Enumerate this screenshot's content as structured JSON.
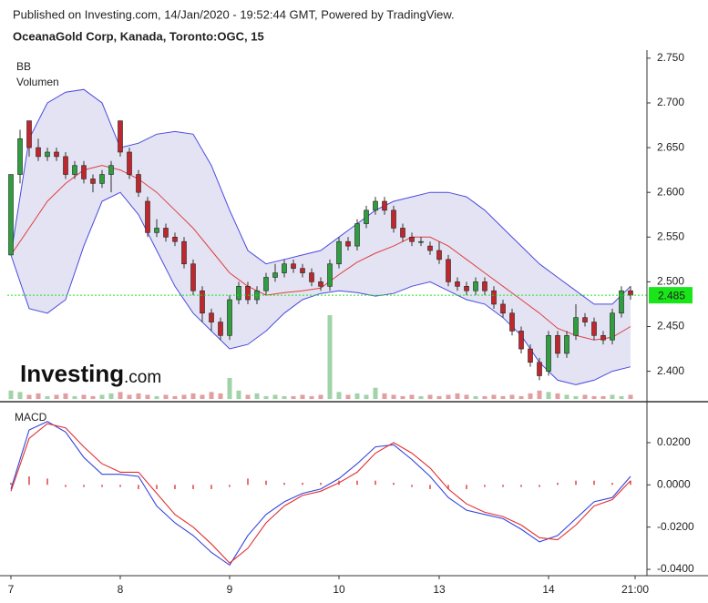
{
  "header": {
    "published": "Published on Investing.com, 14/Jan/2020 - 19:52:44 GMT, Powered by TradingView.",
    "symbol": "OceanaGold Corp, Kanada, Toronto:OGC, 15"
  },
  "logo": {
    "brand": "Investing",
    "suffix": ".com"
  },
  "chart_data": [
    {
      "type": "candlestick",
      "indicator_label": "BB",
      "volume_label": "Volumen",
      "xlim": [
        -0.4,
        69.8
      ],
      "ylim": [
        2.367,
        2.757
      ],
      "yticks": [
        {
          "value": 2.75,
          "label": "2.750"
        },
        {
          "value": 2.7,
          "label": "2.700"
        },
        {
          "value": 2.65,
          "label": "2.650"
        },
        {
          "value": 2.6,
          "label": "2.600"
        },
        {
          "value": 2.55,
          "label": "2.550"
        },
        {
          "value": 2.5,
          "label": "2.500"
        },
        {
          "value": 2.45,
          "label": "2.450"
        },
        {
          "value": 2.4,
          "label": "2.400"
        }
      ],
      "last_price": 2.485,
      "last_price_color": "#19e619",
      "up_color": "#2e9e3e",
      "down_color": "#c0272d",
      "open": [
        2.53,
        2.62,
        2.68,
        2.65,
        2.64,
        2.645,
        2.64,
        2.62,
        2.63,
        2.615,
        2.61,
        2.62,
        2.68,
        2.645,
        2.62,
        2.59,
        2.555,
        2.56,
        2.55,
        2.545,
        2.52,
        2.49,
        2.465,
        2.455,
        2.44,
        2.48,
        2.495,
        2.48,
        2.49,
        2.505,
        2.51,
        2.52,
        2.515,
        2.51,
        2.5,
        2.495,
        2.52,
        2.545,
        2.54,
        2.565,
        2.58,
        2.59,
        2.58,
        2.56,
        2.55,
        2.545,
        2.54,
        2.535,
        2.525,
        2.5,
        2.495,
        2.49,
        2.5,
        2.49,
        2.475,
        2.465,
        2.445,
        2.425,
        2.41,
        2.4,
        2.44,
        2.42,
        2.44,
        2.46,
        2.455,
        2.44,
        2.435,
        2.465,
        2.49
      ],
      "high": [
        2.62,
        2.67,
        2.68,
        2.66,
        2.65,
        2.65,
        2.645,
        2.635,
        2.635,
        2.62,
        2.625,
        2.635,
        2.68,
        2.65,
        2.625,
        2.595,
        2.57,
        2.565,
        2.555,
        2.55,
        2.525,
        2.495,
        2.47,
        2.46,
        2.485,
        2.5,
        2.5,
        2.495,
        2.51,
        2.52,
        2.525,
        2.525,
        2.52,
        2.515,
        2.505,
        2.525,
        2.55,
        2.55,
        2.57,
        2.585,
        2.595,
        2.595,
        2.585,
        2.565,
        2.555,
        2.55,
        2.545,
        2.545,
        2.53,
        2.505,
        2.5,
        2.505,
        2.505,
        2.495,
        2.48,
        2.47,
        2.45,
        2.43,
        2.415,
        2.445,
        2.445,
        2.445,
        2.475,
        2.465,
        2.46,
        2.445,
        2.47,
        2.495,
        2.495
      ],
      "low": [
        2.53,
        2.61,
        2.64,
        2.635,
        2.635,
        2.635,
        2.615,
        2.615,
        2.61,
        2.6,
        2.605,
        2.6,
        2.64,
        2.615,
        2.595,
        2.55,
        2.55,
        2.545,
        2.54,
        2.515,
        2.485,
        2.455,
        2.445,
        2.435,
        2.435,
        2.475,
        2.475,
        2.475,
        2.485,
        2.5,
        2.505,
        2.51,
        2.505,
        2.495,
        2.49,
        2.49,
        2.515,
        2.535,
        2.535,
        2.56,
        2.575,
        2.575,
        2.555,
        2.545,
        2.54,
        2.54,
        2.53,
        2.52,
        2.495,
        2.49,
        2.485,
        2.485,
        2.485,
        2.47,
        2.46,
        2.44,
        2.42,
        2.405,
        2.39,
        2.395,
        2.415,
        2.415,
        2.435,
        2.45,
        2.435,
        2.43,
        2.43,
        2.46,
        2.48
      ],
      "close": [
        2.62,
        2.66,
        2.65,
        2.64,
        2.645,
        2.64,
        2.62,
        2.63,
        2.615,
        2.61,
        2.62,
        2.63,
        2.645,
        2.62,
        2.6,
        2.555,
        2.56,
        2.55,
        2.545,
        2.52,
        2.49,
        2.465,
        2.455,
        2.44,
        2.48,
        2.495,
        2.48,
        2.49,
        2.505,
        2.51,
        2.52,
        2.515,
        2.51,
        2.5,
        2.495,
        2.52,
        2.545,
        2.54,
        2.565,
        2.58,
        2.59,
        2.58,
        2.56,
        2.55,
        2.545,
        2.545,
        2.535,
        2.525,
        2.5,
        2.495,
        2.49,
        2.5,
        2.49,
        2.475,
        2.465,
        2.445,
        2.425,
        2.41,
        2.395,
        2.44,
        2.42,
        2.44,
        2.46,
        2.455,
        2.44,
        2.435,
        2.465,
        2.49,
        2.485
      ],
      "volume": [
        6,
        5,
        3,
        4,
        2,
        3,
        4,
        2,
        3,
        2,
        3,
        4,
        5,
        3,
        4,
        3,
        2,
        3,
        2,
        3,
        4,
        3,
        5,
        4,
        15,
        6,
        3,
        4,
        2,
        3,
        2,
        2,
        3,
        2,
        3,
        60,
        5,
        3,
        4,
        3,
        8,
        4,
        3,
        2,
        3,
        2,
        3,
        2,
        3,
        4,
        3,
        2,
        2,
        3,
        2,
        3,
        2,
        4,
        6,
        5,
        4,
        3,
        2,
        3,
        2,
        2,
        3,
        2,
        3
      ],
      "bollinger": {
        "band_color": "#4a4ae0",
        "middle_color": "#e04040",
        "x": [
          0,
          2,
          4,
          6,
          8,
          10,
          12,
          14,
          16,
          18,
          20,
          22,
          24,
          26,
          28,
          30,
          32,
          34,
          36,
          38,
          40,
          42,
          44,
          46,
          48,
          50,
          52,
          54,
          56,
          58,
          60,
          62,
          64,
          66,
          68
        ],
        "upper": [
          2.53,
          2.66,
          2.7,
          2.712,
          2.715,
          2.7,
          2.65,
          2.655,
          2.665,
          2.668,
          2.665,
          2.63,
          2.58,
          2.535,
          2.52,
          2.525,
          2.53,
          2.535,
          2.55,
          2.565,
          2.58,
          2.59,
          2.595,
          2.6,
          2.6,
          2.595,
          2.58,
          2.56,
          2.54,
          2.52,
          2.505,
          2.49,
          2.475,
          2.475,
          2.495
        ],
        "middle": [
          2.53,
          2.56,
          2.59,
          2.61,
          2.625,
          2.63,
          2.625,
          2.615,
          2.6,
          2.58,
          2.56,
          2.535,
          2.51,
          2.495,
          2.485,
          2.488,
          2.49,
          2.493,
          2.508,
          2.522,
          2.532,
          2.54,
          2.55,
          2.55,
          2.54,
          2.525,
          2.51,
          2.495,
          2.48,
          2.465,
          2.448,
          2.44,
          2.435,
          2.438,
          2.45
        ],
        "lower": [
          2.53,
          2.47,
          2.465,
          2.48,
          2.54,
          2.59,
          2.6,
          2.575,
          2.535,
          2.495,
          2.465,
          2.445,
          2.425,
          2.43,
          2.445,
          2.465,
          2.48,
          2.487,
          2.49,
          2.488,
          2.484,
          2.487,
          2.495,
          2.5,
          2.49,
          2.48,
          2.475,
          2.46,
          2.44,
          2.41,
          2.39,
          2.385,
          2.39,
          2.4,
          2.405
        ]
      }
    },
    {
      "type": "line",
      "indicator_label": "MACD",
      "xlim": [
        -0.4,
        69.8
      ],
      "ylim": [
        -0.043,
        0.0355
      ],
      "xticks": [
        {
          "value": 0,
          "label": "7"
        },
        {
          "value": 12,
          "label": "8"
        },
        {
          "value": 24,
          "label": "9"
        },
        {
          "value": 36,
          "label": "10"
        },
        {
          "value": 47,
          "label": "13"
        },
        {
          "value": 59,
          "label": "14"
        },
        {
          "value": 68.5,
          "label": "21:00"
        }
      ],
      "yticks": [
        {
          "value": 0.02,
          "label": "0.0200"
        },
        {
          "value": 0,
          "label": "0.0000"
        },
        {
          "value": -0.02,
          "label": "-0.0200"
        },
        {
          "value": -0.04,
          "label": "-0.0400"
        }
      ],
      "x": [
        0,
        2,
        4,
        6,
        8,
        10,
        12,
        14,
        16,
        18,
        20,
        22,
        24,
        26,
        28,
        30,
        32,
        34,
        36,
        38,
        40,
        42,
        44,
        46,
        48,
        50,
        52,
        54,
        56,
        58,
        60,
        62,
        64,
        66,
        68
      ],
      "histogram": {
        "color": "#e05050",
        "values": [
          0.001,
          0.004,
          0.003,
          -0.001,
          -0.001,
          -0.001,
          -0.001,
          -0.002,
          -0.002,
          -0.002,
          -0.002,
          -0.002,
          -0.001,
          0.003,
          0.002,
          0.001,
          0.001,
          0.001,
          0.002,
          0.002,
          0.002,
          0.001,
          -0.001,
          -0.002,
          -0.002,
          -0.002,
          -0.001,
          -0.001,
          -0.001,
          -0.001,
          0.001,
          0.002,
          0.002,
          0.001,
          0.002
        ]
      },
      "series": [
        {
          "color": "#3344dd",
          "values": [
            -0.002,
            0.026,
            0.03,
            0.025,
            0.013,
            0.005,
            0.005,
            0.004,
            -0.01,
            -0.018,
            -0.024,
            -0.032,
            -0.038,
            -0.024,
            -0.014,
            -0.008,
            -0.004,
            -0.002,
            0.003,
            0.01,
            0.018,
            0.019,
            0.012,
            0.004,
            -0.006,
            -0.012,
            -0.014,
            -0.016,
            -0.021,
            -0.027,
            -0.024,
            -0.016,
            -0.008,
            -0.006,
            0.004
          ]
        },
        {
          "color": "#e03030",
          "values": [
            -0.003,
            0.022,
            0.029,
            0.027,
            0.018,
            0.01,
            0.006,
            0.006,
            -0.004,
            -0.014,
            -0.02,
            -0.028,
            -0.037,
            -0.03,
            -0.018,
            -0.01,
            -0.005,
            -0.003,
            0.001,
            0.006,
            0.015,
            0.02,
            0.015,
            0.008,
            -0.002,
            -0.009,
            -0.013,
            -0.015,
            -0.019,
            -0.025,
            -0.026,
            -0.019,
            -0.01,
            -0.007,
            0.002
          ]
        }
      ]
    }
  ]
}
